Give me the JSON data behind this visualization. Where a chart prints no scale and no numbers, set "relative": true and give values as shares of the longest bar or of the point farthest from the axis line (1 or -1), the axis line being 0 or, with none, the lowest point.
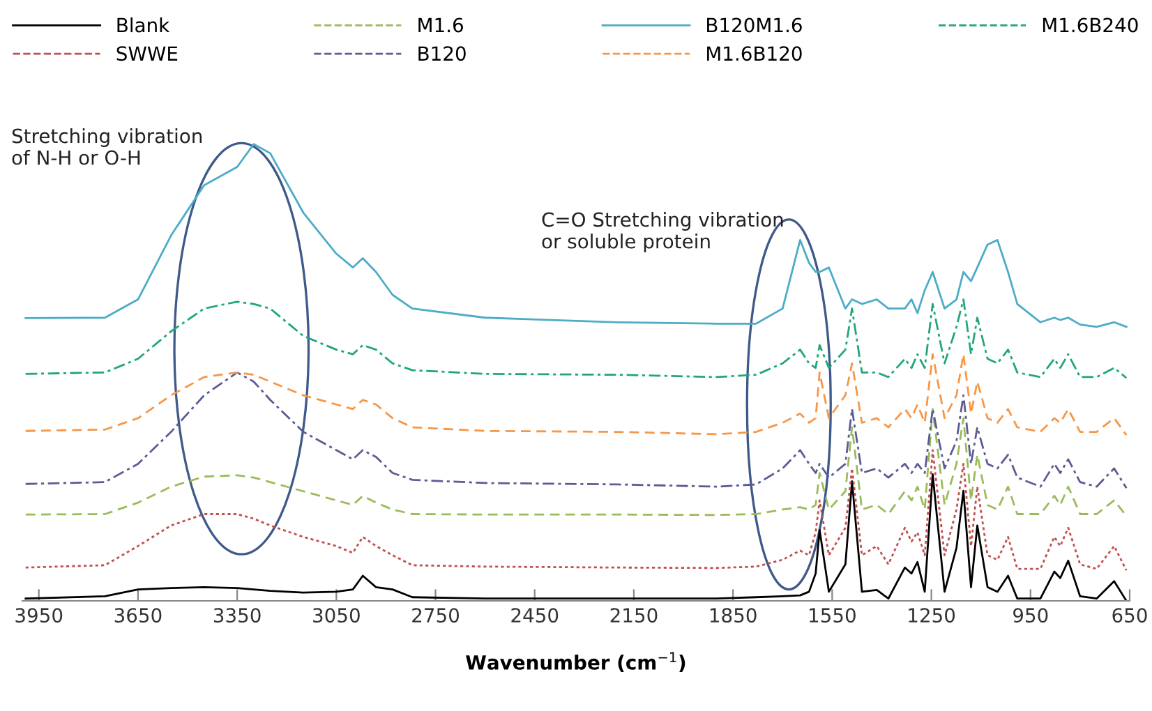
{
  "chart_data": {
    "type": "line",
    "relative": true,
    "xlabel": "Wavenumber (cm$^{−1}$)",
    "legend": "top",
    "grid": false,
    "annotations": [
      "Stretching vibration\nof N-H or O-H",
      "C=O Stretching vibration\nor soluble protein"
    ],
    "xlim": [
      4000,
      650
    ],
    "xticks": [
      3950,
      3650,
      3350,
      3050,
      2750,
      2450,
      2150,
      1850,
      1550,
      1250,
      950,
      650
    ],
    "x": [
      3990,
      3750,
      3650,
      3550,
      3450,
      3350,
      3300,
      3250,
      3150,
      3050,
      3000,
      2970,
      2930,
      2880,
      2820,
      2600,
      2200,
      1900,
      1780,
      1700,
      1647,
      1620,
      1600,
      1588,
      1560,
      1510,
      1490,
      1460,
      1415,
      1380,
      1330,
      1310,
      1292,
      1270,
      1246,
      1210,
      1174,
      1153,
      1130,
      1111,
      1080,
      1050,
      1018,
      990,
      920,
      878,
      860,
      836,
      800,
      750,
      697,
      660
    ],
    "series": [
      {
        "name": "Blank",
        "color": "#000000",
        "line_style": "solid",
        "values": [
          0.005,
          0.01,
          0.025,
          0.028,
          0.03,
          0.028,
          0.025,
          0.022,
          0.018,
          0.02,
          0.025,
          0.055,
          0.03,
          0.025,
          0.008,
          0.005,
          0.005,
          0.005,
          0.008,
          0.01,
          0.012,
          0.02,
          0.06,
          0.155,
          0.02,
          0.08,
          0.262,
          0.02,
          0.024,
          0.005,
          0.073,
          0.06,
          0.085,
          0.02,
          0.277,
          0.02,
          0.116,
          0.241,
          0.03,
          0.165,
          0.03,
          0.02,
          0.055,
          0.005,
          0.005,
          0.064,
          0.05,
          0.088,
          0.01,
          0.005,
          0.043,
          0.0
        ]
      },
      {
        "name": "SWWE",
        "color": "#c0504d",
        "line_style": "dotted",
        "values": [
          0.073,
          0.078,
          0.12,
          0.165,
          0.19,
          0.19,
          0.18,
          0.165,
          0.14,
          0.12,
          0.105,
          0.14,
          0.12,
          0.1,
          0.078,
          0.075,
          0.073,
          0.072,
          0.075,
          0.09,
          0.11,
          0.1,
          0.15,
          0.22,
          0.1,
          0.16,
          0.29,
          0.1,
          0.12,
          0.08,
          0.16,
          0.13,
          0.15,
          0.1,
          0.33,
          0.1,
          0.2,
          0.3,
          0.12,
          0.25,
          0.1,
          0.09,
          0.14,
          0.07,
          0.07,
          0.14,
          0.12,
          0.16,
          0.08,
          0.07,
          0.12,
          0.067
        ]
      },
      {
        "name": "M1.6",
        "color": "#9bbb59",
        "line_style": "dashed",
        "values": [
          0.189,
          0.19,
          0.215,
          0.25,
          0.272,
          0.275,
          0.27,
          0.26,
          0.24,
          0.22,
          0.21,
          0.23,
          0.215,
          0.2,
          0.19,
          0.189,
          0.189,
          0.188,
          0.19,
          0.2,
          0.205,
          0.2,
          0.21,
          0.28,
          0.2,
          0.24,
          0.38,
          0.2,
          0.21,
          0.19,
          0.24,
          0.22,
          0.25,
          0.2,
          0.42,
          0.21,
          0.3,
          0.4,
          0.22,
          0.32,
          0.21,
          0.2,
          0.25,
          0.19,
          0.19,
          0.23,
          0.21,
          0.25,
          0.19,
          0.19,
          0.22,
          0.186
        ]
      },
      {
        "name": "B120",
        "color": "#5b5b95",
        "line_style": "dashdot",
        "values": [
          0.256,
          0.26,
          0.3,
          0.37,
          0.45,
          0.5,
          0.48,
          0.44,
          0.37,
          0.33,
          0.31,
          0.33,
          0.315,
          0.28,
          0.265,
          0.258,
          0.255,
          0.25,
          0.255,
          0.29,
          0.33,
          0.3,
          0.28,
          0.3,
          0.27,
          0.3,
          0.42,
          0.28,
          0.29,
          0.27,
          0.3,
          0.28,
          0.3,
          0.28,
          0.42,
          0.29,
          0.35,
          0.45,
          0.3,
          0.38,
          0.3,
          0.29,
          0.32,
          0.27,
          0.25,
          0.3,
          0.28,
          0.31,
          0.26,
          0.25,
          0.29,
          0.247
        ]
      },
      {
        "name": "B120M1.6",
        "color": "#4bacc6",
        "line_style": "solid",
        "values": [
          0.619,
          0.62,
          0.66,
          0.8,
          0.91,
          0.95,
          1.0,
          0.98,
          0.85,
          0.76,
          0.73,
          0.75,
          0.72,
          0.67,
          0.64,
          0.62,
          0.61,
          0.607,
          0.607,
          0.64,
          0.79,
          0.74,
          0.72,
          0.72,
          0.73,
          0.64,
          0.66,
          0.65,
          0.66,
          0.64,
          0.64,
          0.66,
          0.63,
          0.68,
          0.72,
          0.64,
          0.66,
          0.72,
          0.7,
          0.73,
          0.78,
          0.79,
          0.72,
          0.65,
          0.61,
          0.62,
          0.615,
          0.62,
          0.605,
          0.6,
          0.61,
          0.6
        ]
      },
      {
        "name": "M1.6B120",
        "color": "#f79646",
        "line_style": "dashed",
        "values": [
          0.372,
          0.375,
          0.4,
          0.45,
          0.49,
          0.5,
          0.495,
          0.48,
          0.45,
          0.43,
          0.42,
          0.44,
          0.43,
          0.4,
          0.38,
          0.372,
          0.37,
          0.365,
          0.37,
          0.39,
          0.41,
          0.39,
          0.4,
          0.5,
          0.4,
          0.45,
          0.52,
          0.39,
          0.4,
          0.38,
          0.42,
          0.4,
          0.43,
          0.39,
          0.54,
          0.4,
          0.45,
          0.54,
          0.41,
          0.48,
          0.4,
          0.39,
          0.42,
          0.38,
          0.37,
          0.4,
          0.39,
          0.42,
          0.37,
          0.37,
          0.4,
          0.363
        ]
      },
      {
        "name": "M1.6B240",
        "color": "#1fa67a",
        "line_style": "dashdot",
        "values": [
          0.497,
          0.5,
          0.53,
          0.59,
          0.64,
          0.655,
          0.65,
          0.64,
          0.58,
          0.55,
          0.54,
          0.56,
          0.55,
          0.52,
          0.505,
          0.497,
          0.495,
          0.49,
          0.495,
          0.52,
          0.55,
          0.52,
          0.51,
          0.56,
          0.51,
          0.55,
          0.64,
          0.5,
          0.5,
          0.49,
          0.53,
          0.51,
          0.54,
          0.51,
          0.65,
          0.52,
          0.6,
          0.66,
          0.54,
          0.62,
          0.53,
          0.52,
          0.55,
          0.5,
          0.49,
          0.53,
          0.51,
          0.54,
          0.49,
          0.49,
          0.51,
          0.488
        ]
      }
    ]
  }
}
